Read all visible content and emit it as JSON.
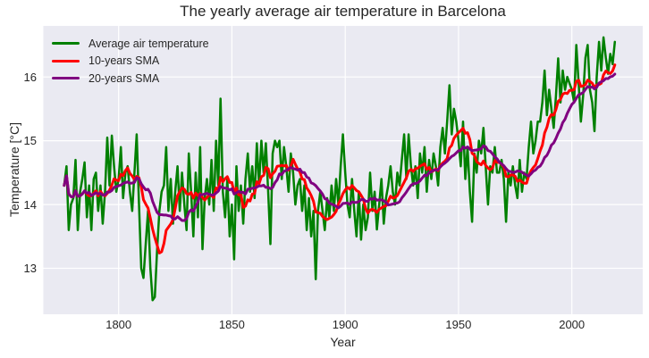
{
  "chart_data": {
    "type": "line",
    "title": "The yearly average air temperature in Barcelona",
    "xlabel": "Year",
    "ylabel": "Temperature [°C]",
    "x_start": 1776,
    "x_end": 2019,
    "xlim": [
      1766.8,
      2031.3
    ],
    "ylim": [
      12.28,
      16.8
    ],
    "xticks": [
      1800,
      1850,
      1900,
      1950,
      2000
    ],
    "yticks": [
      13,
      14,
      15,
      16
    ],
    "grid": true,
    "legend_position": "upper left",
    "colors": {
      "figure_bg": "#ffffff",
      "plot_bg": "#eaeaf2",
      "grid": "#ffffff",
      "text": "#262626"
    },
    "series": [
      {
        "name": "Average air temperature",
        "color": "#008000",
        "width": 2.5,
        "values": [
          14.3,
          14.6,
          13.6,
          14.0,
          14.1,
          14.7,
          13.6,
          14.2,
          14.4,
          14.66,
          13.8,
          14.3,
          13.6,
          14.4,
          14.5,
          13.9,
          14.3,
          13.7,
          14.2,
          15.05,
          14.3,
          15.08,
          14.6,
          14.2,
          14.4,
          14.9,
          14.1,
          14.5,
          14.6,
          14.2,
          13.9,
          14.5,
          15.1,
          14.0,
          13.0,
          12.85,
          13.4,
          13.9,
          13.0,
          12.5,
          12.55,
          13.3,
          13.9,
          14.2,
          14.3,
          14.9,
          13.9,
          14.4,
          13.7,
          14.2,
          14.6,
          13.9,
          14.5,
          14.0,
          13.6,
          14.8,
          14.2,
          13.5,
          14.5,
          13.8,
          14.9,
          13.3,
          14.1,
          14.4,
          14.0,
          14.7,
          13.9,
          15.0,
          14.3,
          15.66,
          14.2,
          13.8,
          14.4,
          13.5,
          14.0,
          13.14,
          14.6,
          13.9,
          14.3,
          13.7,
          14.4,
          14.8,
          14.2,
          14.6,
          14.1,
          14.96,
          14.3,
          15.0,
          14.5,
          14.96,
          14.2,
          13.38,
          14.8,
          15.0,
          14.9,
          15.0,
          14.4,
          14.9,
          14.6,
          14.2,
          14.8,
          14.5,
          14.0,
          14.3,
          14.4,
          13.9,
          14.3,
          13.6,
          14.1,
          13.5,
          13.9,
          12.83,
          13.9,
          14.2,
          13.9,
          13.6,
          14.1,
          13.8,
          14.3,
          13.9,
          14.4,
          14.0,
          14.6,
          15.1,
          14.5,
          14.0,
          13.8,
          14.4,
          13.9,
          13.5,
          14.2,
          13.45,
          14.0,
          13.6,
          13.8,
          14.5,
          13.9,
          14.2,
          13.61,
          14.0,
          14.4,
          13.7,
          14.1,
          14.3,
          14.6,
          14.2,
          14.0,
          14.5,
          14.3,
          14.7,
          15.1,
          14.4,
          15.1,
          14.6,
          14.3,
          14.6,
          14.1,
          14.8,
          14.5,
          14.9,
          14.2,
          14.7,
          14.4,
          14.8,
          14.6,
          14.3,
          14.9,
          15.2,
          14.8,
          15.3,
          15.87,
          15.1,
          15.5,
          15.3,
          15.0,
          14.6,
          15.3,
          14.4,
          14.9,
          14.2,
          13.73,
          14.8,
          14.5,
          15.0,
          14.8,
          15.2,
          14.6,
          14.0,
          14.6,
          14.5,
          14.9,
          14.5,
          14.5,
          14.7,
          14.4,
          13.73,
          14.5,
          14.3,
          14.6,
          14.3,
          14.1,
          14.7,
          14.2,
          14.5,
          14.4,
          14.9,
          15.3,
          14.8,
          15.0,
          15.3,
          15.3,
          15.6,
          16.1,
          15.4,
          15.8,
          15.5,
          15.2,
          15.7,
          16.29,
          15.6,
          16.1,
          15.8,
          16.0,
          15.9,
          15.8,
          15.6,
          16.5,
          15.9,
          15.3,
          15.7,
          16.3,
          16.5,
          15.8,
          15.6,
          15.15,
          16.0,
          16.55,
          16.1,
          16.62,
          16.3,
          16.05,
          16.36,
          16.2,
          16.55
        ]
      },
      {
        "name": "10-years SMA",
        "color": "#ff0000",
        "width": 3,
        "window": 10,
        "derived_from": "Average air temperature"
      },
      {
        "name": "20-years SMA",
        "color": "#800080",
        "width": 3,
        "window": 20,
        "derived_from": "Average air temperature"
      }
    ]
  }
}
